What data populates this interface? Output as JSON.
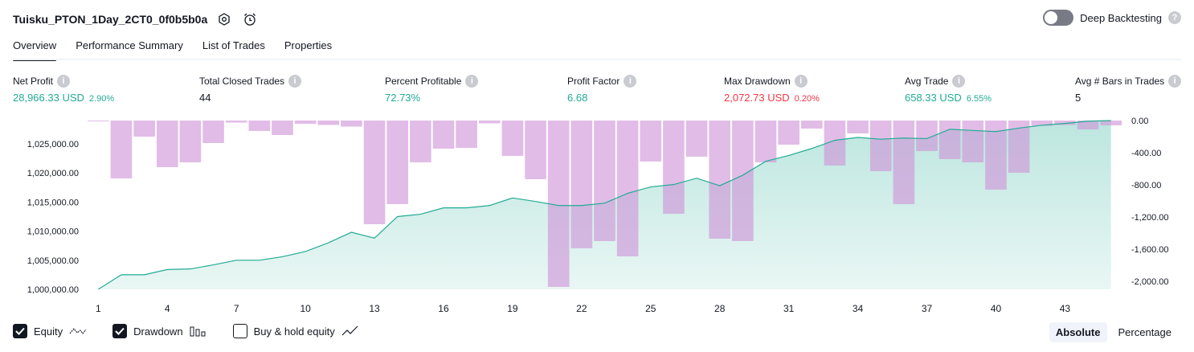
{
  "header": {
    "strategy_title": "Tuisku_PTON_1Day_2CT0_0f0b5b0a",
    "deep_backtesting_label": "Deep Backtesting",
    "deep_backtesting_enabled": false,
    "help_glyph": "?"
  },
  "tabs": [
    {
      "label": "Overview",
      "active": true
    },
    {
      "label": "Performance Summary",
      "active": false
    },
    {
      "label": "List of Trades",
      "active": false
    },
    {
      "label": "Properties",
      "active": false
    }
  ],
  "metrics": [
    {
      "label": "Net Profit",
      "value": "28,966.33 USD",
      "pct": "2.90%",
      "color": "#22ab94"
    },
    {
      "label": "Total Closed Trades",
      "value": "44",
      "pct": "",
      "color": "#131722"
    },
    {
      "label": "Percent Profitable",
      "value": "72.73%",
      "pct": "",
      "color": "#22ab94"
    },
    {
      "label": "Profit Factor",
      "value": "6.68",
      "pct": "",
      "color": "#22ab94"
    },
    {
      "label": "Max Drawdown",
      "value": "2,072.73 USD",
      "pct": "0.20%",
      "color": "#f23645"
    },
    {
      "label": "Avg Trade",
      "value": "658.33 USD",
      "pct": "6.55%",
      "color": "#22ab94"
    },
    {
      "label": "Avg # Bars in Trades",
      "value": "5",
      "pct": "",
      "color": "#131722"
    }
  ],
  "chart_data": {
    "type": "line",
    "x_ticks": [
      "1",
      "4",
      "7",
      "10",
      "13",
      "16",
      "19",
      "22",
      "25",
      "28",
      "31",
      "34",
      "37",
      "40",
      "43"
    ],
    "left_axis": {
      "ticks": [
        "1,000,000.00",
        "1,005,000.00",
        "1,010,000.00",
        "1,015,000.00",
        "1,020,000.00",
        "1,025,000.00"
      ],
      "ylim": [
        1000000,
        1029000
      ]
    },
    "right_axis": {
      "ticks": [
        "0.00",
        "-400.00",
        "-800.00",
        "-1,200.00",
        "-1,600.00",
        "-2,000.00"
      ],
      "ylim": [
        -2100,
        0
      ]
    },
    "series": [
      {
        "name": "Equity",
        "color": "#22ab94",
        "x": [
          1,
          2,
          3,
          4,
          5,
          6,
          7,
          8,
          9,
          10,
          11,
          12,
          13,
          14,
          15,
          16,
          17,
          18,
          19,
          20,
          21,
          22,
          23,
          24,
          25,
          26,
          27,
          28,
          29,
          30,
          31,
          32,
          33,
          34,
          35,
          36,
          37,
          38,
          39,
          40,
          41,
          42,
          43,
          44,
          45
        ],
        "values": [
          1000000,
          1002500,
          1002500,
          1003400,
          1003500,
          1004200,
          1005000,
          1005000,
          1005600,
          1006500,
          1008000,
          1009800,
          1008800,
          1012500,
          1012900,
          1014000,
          1014000,
          1014400,
          1015700,
          1015100,
          1014400,
          1014400,
          1014800,
          1016500,
          1017600,
          1018000,
          1019100,
          1017800,
          1019600,
          1022000,
          1023000,
          1024200,
          1025600,
          1026100,
          1025800,
          1026000,
          1025900,
          1027500,
          1027300,
          1027100,
          1027700,
          1028200,
          1028500,
          1028900,
          1029000
        ]
      },
      {
        "name": "Drawdown",
        "color": "#ce93d8",
        "x": [
          1,
          2,
          3,
          4,
          5,
          6,
          7,
          8,
          9,
          10,
          11,
          12,
          13,
          14,
          15,
          16,
          17,
          18,
          19,
          20,
          21,
          22,
          23,
          24,
          25,
          26,
          27,
          28,
          29,
          30,
          31,
          32,
          33,
          34,
          35,
          36,
          37,
          38,
          39,
          40,
          41,
          42,
          43,
          44,
          45
        ],
        "values": [
          -10,
          -720,
          -200,
          -580,
          -520,
          -280,
          -25,
          -130,
          -180,
          -40,
          -55,
          -75,
          -1290,
          -1040,
          -520,
          -350,
          -340,
          -35,
          -440,
          -730,
          -2070,
          -1590,
          -1500,
          -1690,
          -510,
          -1160,
          -450,
          -1470,
          -1500,
          -520,
          -300,
          -100,
          -560,
          -160,
          -630,
          -1040,
          -380,
          -480,
          -520,
          -860,
          -650,
          -65,
          -55,
          -110,
          -60
        ]
      }
    ]
  },
  "legend": [
    {
      "label": "Equity",
      "checked": true,
      "icon": "equity-line-icon"
    },
    {
      "label": "Drawdown",
      "checked": true,
      "icon": "drawdown-bars-icon"
    },
    {
      "label": "Buy & hold equity",
      "checked": false,
      "icon": "buy-hold-line-icon"
    }
  ],
  "modes": [
    {
      "label": "Absolute",
      "active": true
    },
    {
      "label": "Percentage",
      "active": false
    }
  ]
}
